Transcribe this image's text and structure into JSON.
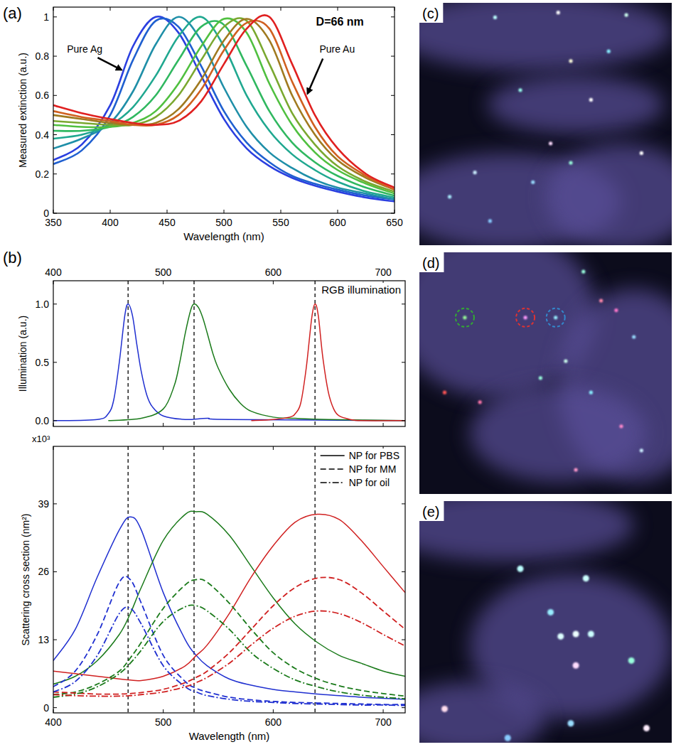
{
  "chart_data": [
    {
      "panel": "(a)",
      "type": "line",
      "xlabel": "Wavelength (nm)",
      "ylabel": "Measured extinction (a.u.)",
      "annotations": [
        "D=66 nm",
        "Pure Ag",
        "Pure Au"
      ],
      "x": [
        350,
        375,
        400,
        420,
        440,
        460,
        480,
        500,
        520,
        540,
        560,
        580,
        600,
        625,
        650
      ],
      "xlim": [
        350,
        650
      ],
      "xticks": [
        350,
        400,
        450,
        500,
        550,
        600,
        650
      ],
      "ylim": [
        0,
        1.05
      ],
      "yticks": [
        0,
        0.2,
        0.4,
        0.6,
        0.8,
        1
      ],
      "series": [
        {
          "color": "#2b3fe0",
          "values": [
            0.27,
            0.35,
            0.55,
            0.85,
            1.0,
            0.92,
            0.7,
            0.48,
            0.33,
            0.24,
            0.18,
            0.14,
            0.11,
            0.08,
            0.06
          ]
        },
        {
          "color": "#2060d0",
          "values": [
            0.25,
            0.32,
            0.5,
            0.78,
            0.98,
            0.95,
            0.75,
            0.52,
            0.36,
            0.26,
            0.19,
            0.15,
            0.12,
            0.09,
            0.07
          ]
        },
        {
          "color": "#1f8fa8",
          "values": [
            0.33,
            0.38,
            0.46,
            0.62,
            0.86,
            1.0,
            0.88,
            0.64,
            0.44,
            0.31,
            0.23,
            0.17,
            0.13,
            0.1,
            0.07
          ]
        },
        {
          "color": "#20a890",
          "values": [
            0.38,
            0.4,
            0.45,
            0.54,
            0.7,
            0.9,
            1.0,
            0.85,
            0.6,
            0.42,
            0.3,
            0.22,
            0.16,
            0.11,
            0.08
          ]
        },
        {
          "color": "#30b860",
          "values": [
            0.42,
            0.42,
            0.44,
            0.49,
            0.6,
            0.78,
            0.95,
            0.96,
            0.75,
            0.52,
            0.36,
            0.26,
            0.19,
            0.13,
            0.09
          ]
        },
        {
          "color": "#50c040",
          "values": [
            0.45,
            0.44,
            0.44,
            0.46,
            0.52,
            0.66,
            0.85,
            0.99,
            0.92,
            0.66,
            0.45,
            0.31,
            0.22,
            0.15,
            0.1
          ]
        },
        {
          "color": "#7aa830",
          "values": [
            0.47,
            0.46,
            0.45,
            0.45,
            0.49,
            0.6,
            0.78,
            0.95,
            0.98,
            0.76,
            0.51,
            0.35,
            0.24,
            0.16,
            0.11
          ]
        },
        {
          "color": "#a07a20",
          "values": [
            0.5,
            0.48,
            0.46,
            0.45,
            0.46,
            0.53,
            0.68,
            0.88,
            0.99,
            0.88,
            0.6,
            0.4,
            0.27,
            0.18,
            0.12
          ]
        },
        {
          "color": "#d06020",
          "values": [
            0.52,
            0.49,
            0.47,
            0.45,
            0.45,
            0.5,
            0.63,
            0.83,
            0.97,
            0.94,
            0.67,
            0.44,
            0.29,
            0.19,
            0.12
          ]
        },
        {
          "color": "#e02020",
          "values": [
            0.55,
            0.51,
            0.48,
            0.46,
            0.45,
            0.47,
            0.57,
            0.76,
            0.94,
            1.0,
            0.76,
            0.5,
            0.33,
            0.2,
            0.13
          ]
        }
      ]
    },
    {
      "panel": "(b)",
      "type": "line",
      "ylabel": "Illumination (a.u.)",
      "annotations": [
        "RGB illumination"
      ],
      "xlim": [
        400,
        720
      ],
      "xticks": [
        400,
        500,
        600,
        700
      ],
      "ylim": [
        -0.05,
        1.2
      ],
      "yticks": [
        {
          "value": 0,
          "label": "0.0"
        },
        {
          "value": 0.5,
          "label": "0.5"
        },
        {
          "value": 1,
          "label": "1.0"
        }
      ],
      "vlines": [
        468,
        528,
        638
      ],
      "series": [
        {
          "color": "#1f2fd0",
          "x": [
            400,
            440,
            450,
            455,
            460,
            465,
            468,
            472,
            476,
            480,
            485,
            490,
            500,
            520,
            540,
            560,
            720
          ],
          "values": [
            0,
            0.01,
            0.06,
            0.18,
            0.5,
            0.9,
            1.0,
            0.9,
            0.65,
            0.42,
            0.22,
            0.12,
            0.04,
            0.01,
            0.02,
            0.01,
            0
          ]
        },
        {
          "color": "#1a7a1a",
          "x": [
            450,
            480,
            500,
            510,
            515,
            520,
            525,
            528,
            532,
            536,
            540,
            545,
            550,
            560,
            570,
            580,
            600,
            620,
            650,
            720
          ],
          "values": [
            0,
            0.02,
            0.1,
            0.3,
            0.5,
            0.75,
            0.95,
            1.0,
            0.97,
            0.88,
            0.75,
            0.58,
            0.45,
            0.27,
            0.15,
            0.08,
            0.03,
            0.02,
            0.01,
            0
          ]
        },
        {
          "color": "#d02020",
          "x": [
            580,
            600,
            615,
            620,
            625,
            630,
            635,
            638,
            641,
            645,
            650,
            655,
            660,
            670,
            680,
            720
          ],
          "values": [
            0,
            0.01,
            0.03,
            0.06,
            0.15,
            0.45,
            0.88,
            1.0,
            0.9,
            0.55,
            0.25,
            0.1,
            0.04,
            0.01,
            0,
            0
          ]
        }
      ]
    },
    {
      "type": "line",
      "xlabel": "Wavelength (nm)",
      "ylabel": "Scattering cross section (nm²)",
      "annotations": [
        "x10³"
      ],
      "x": [
        400,
        420,
        440,
        460,
        470,
        480,
        500,
        520,
        530,
        540,
        560,
        580,
        600,
        620,
        640,
        660,
        680,
        700,
        720
      ],
      "xlim": [
        400,
        720
      ],
      "xticks": [
        400,
        500,
        600,
        700
      ],
      "ylim": [
        -1,
        50
      ],
      "yticks": [
        0,
        13,
        26,
        39
      ],
      "vlines": [
        468,
        528,
        638
      ],
      "legend": "upper right",
      "series": [
        {
          "name": "NP for PBS",
          "color": "#1f2fd0",
          "line_style": "solid",
          "values": [
            9,
            15,
            25,
            34,
            36.5,
            34,
            22,
            13,
            10,
            8,
            5.5,
            4.3,
            3.5,
            3,
            2.6,
            2.3,
            2,
            1.8,
            1.6
          ]
        },
        {
          "name": "NP for PBS",
          "color": "#1a7a1a",
          "line_style": "solid",
          "values": [
            4.5,
            6,
            9,
            14,
            18,
            23,
            32,
            37,
            37.5,
            37,
            33,
            27,
            21,
            16,
            12.5,
            10,
            8.5,
            7,
            6
          ]
        },
        {
          "name": "NP for PBS",
          "color": "#d02020",
          "line_style": "solid",
          "values": [
            7,
            6.5,
            6,
            5.5,
            5.3,
            5.2,
            6,
            8,
            10,
            12,
            18,
            25,
            31,
            35.5,
            37,
            36,
            32,
            27,
            22
          ]
        },
        {
          "name": "NP for MM",
          "color": "#1f2fd0",
          "line_style": "dashed",
          "values": [
            4,
            7,
            14,
            24,
            24.5,
            20,
            10,
            5,
            3.7,
            3,
            2,
            1.5,
            1.2,
            1,
            0.9,
            0.8,
            0.7,
            0.6,
            0.6
          ]
        },
        {
          "name": "NP for MM",
          "color": "#1a7a1a",
          "line_style": "dashed",
          "values": [
            2.5,
            3,
            4.5,
            7,
            9.5,
            12.5,
            19,
            23.5,
            24.5,
            24,
            20,
            15,
            10.5,
            7.5,
            5.5,
            4.2,
            3.3,
            2.7,
            2.2
          ]
        },
        {
          "name": "NP for MM",
          "color": "#d02020",
          "line_style": "dashed",
          "values": [
            3,
            2.8,
            2.6,
            2.6,
            2.7,
            2.9,
            3.5,
            4.8,
            5.8,
            7,
            10.5,
            15,
            19.5,
            23,
            24.8,
            24.5,
            22,
            18.5,
            15
          ]
        },
        {
          "name": "NP for oil",
          "color": "#1f2fd0",
          "line_style": "dashdot",
          "values": [
            3,
            5,
            10,
            18,
            19,
            16,
            8,
            4,
            3,
            2.3,
            1.6,
            1.2,
            1,
            0.8,
            0.7,
            0.6,
            0.5,
            0.5,
            0.4
          ]
        },
        {
          "name": "NP for oil",
          "color": "#1a7a1a",
          "line_style": "dashdot",
          "values": [
            2,
            2.6,
            4,
            6.5,
            8.5,
            11,
            16.5,
            19.3,
            19.5,
            18.5,
            15,
            10.5,
            7.5,
            5.3,
            4,
            3,
            2.4,
            2,
            1.7
          ]
        },
        {
          "name": "NP for oil",
          "color": "#d02020",
          "line_style": "dashdot",
          "values": [
            2.5,
            2.3,
            2.2,
            2.2,
            2.3,
            2.5,
            3,
            4,
            4.8,
            5.8,
            8.5,
            12,
            15.2,
            17.5,
            18.5,
            18,
            16.3,
            14,
            11.8
          ]
        }
      ]
    }
  ],
  "images": [
    {
      "panel": "(c)"
    },
    {
      "panel": "(d)"
    },
    {
      "panel": "(e)"
    }
  ]
}
